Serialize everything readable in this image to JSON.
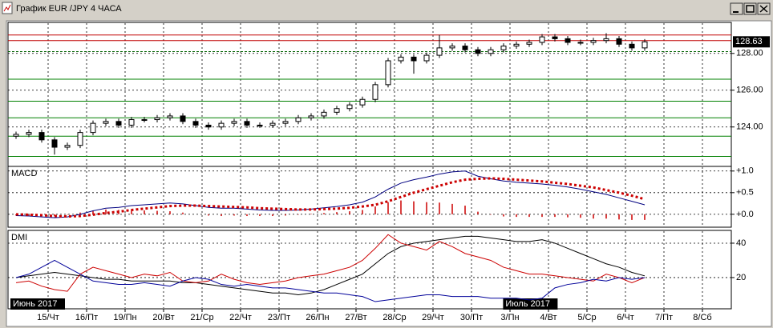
{
  "window": {
    "title": "График EUR /JPY  4 ЧАСА"
  },
  "chart_data": [
    {
      "type": "candlestick",
      "open": [
        123.5,
        123.6,
        123.7,
        123.3,
        122.9,
        123.0,
        123.7,
        124.2,
        124.3,
        124.1,
        124.4,
        124.4,
        124.5,
        124.6,
        124.3,
        124.1,
        124.0,
        124.2,
        124.3,
        124.1,
        124.1,
        124.2,
        124.3,
        124.5,
        124.6,
        124.8,
        125.0,
        125.2,
        125.5,
        126.3,
        127.6,
        127.8,
        127.6,
        127.9,
        128.3,
        128.4,
        128.2,
        128.0,
        128.2,
        128.4,
        128.5,
        128.6,
        128.9,
        128.8,
        128.6,
        128.6,
        128.7,
        128.8,
        128.5,
        128.3
      ],
      "high": [
        123.75,
        123.85,
        123.85,
        123.45,
        123.15,
        123.85,
        124.35,
        124.45,
        124.45,
        124.55,
        124.55,
        124.65,
        124.75,
        124.75,
        124.45,
        124.25,
        124.35,
        124.45,
        124.45,
        124.25,
        124.35,
        124.45,
        124.65,
        124.75,
        124.95,
        125.15,
        125.35,
        125.65,
        126.45,
        127.75,
        127.95,
        127.95,
        128.05,
        129.0,
        128.55,
        128.55,
        128.35,
        128.35,
        128.55,
        128.65,
        128.75,
        129.05,
        129.05,
        128.95,
        128.75,
        128.85,
        129.1,
        128.95,
        128.65,
        128.78
      ],
      "low": [
        123.35,
        123.45,
        123.15,
        122.5,
        122.75,
        122.85,
        123.55,
        124.05,
        123.95,
        123.95,
        124.25,
        124.25,
        124.35,
        124.15,
        123.95,
        123.85,
        123.85,
        124.05,
        123.95,
        123.95,
        123.95,
        124.05,
        124.15,
        124.35,
        124.45,
        124.65,
        124.85,
        125.05,
        125.35,
        126.15,
        127.45,
        126.9,
        127.45,
        127.75,
        128.15,
        128.05,
        127.85,
        127.85,
        128.05,
        128.25,
        128.35,
        128.45,
        128.65,
        128.45,
        128.45,
        128.45,
        128.55,
        128.35,
        128.15,
        128.15
      ],
      "close": [
        123.6,
        123.7,
        123.3,
        122.9,
        123.0,
        123.7,
        124.2,
        124.3,
        124.1,
        124.4,
        124.4,
        124.5,
        124.6,
        124.3,
        124.1,
        124.0,
        124.2,
        124.3,
        124.1,
        124.1,
        124.2,
        124.3,
        124.5,
        124.6,
        124.8,
        125.0,
        125.2,
        125.5,
        126.3,
        127.6,
        127.8,
        127.6,
        127.9,
        128.3,
        128.4,
        128.2,
        128.0,
        128.2,
        128.4,
        128.5,
        128.6,
        128.9,
        128.8,
        128.6,
        128.6,
        128.7,
        128.8,
        128.5,
        128.3,
        128.63
      ],
      "up_color": "#ffffff",
      "down_color": "#000000",
      "xlim": [
        0,
        56.25
      ],
      "xticks": [
        {
          "value": 3,
          "label": "15/Чт"
        },
        {
          "value": 6,
          "label": "16/Пт"
        },
        {
          "value": 9,
          "label": "19/Пн"
        },
        {
          "value": 12,
          "label": "20/Вт"
        },
        {
          "value": 15,
          "label": "21/Ср"
        },
        {
          "value": 18,
          "label": "22/Чт"
        },
        {
          "value": 21,
          "label": "23/Пт"
        },
        {
          "value": 24,
          "label": "26/Пн"
        },
        {
          "value": 27,
          "label": "27/Вт"
        },
        {
          "value": 30,
          "label": "28/Ср"
        },
        {
          "value": 33,
          "label": "29/Чт"
        },
        {
          "value": 36,
          "label": "30/Пт"
        },
        {
          "value": 39,
          "label": "3/Пн"
        },
        {
          "value": 42,
          "label": "4/Вт"
        },
        {
          "value": 45,
          "label": "5/Ср"
        },
        {
          "value": 48,
          "label": "6/Чт"
        },
        {
          "value": 51,
          "label": "7/Пт"
        },
        {
          "value": 54,
          "label": "8/Сб"
        }
      ],
      "ylim": [
        121.9,
        129.6
      ],
      "yticks": [
        {
          "value": 124,
          "label": "124.00"
        },
        {
          "value": 126,
          "label": "126.00"
        },
        {
          "value": 128,
          "label": "128.00"
        }
      ],
      "grid": true,
      "levels": [
        {
          "value": 129.0,
          "color": "#c00000"
        },
        {
          "value": 128.7,
          "color": "#c00000"
        },
        {
          "value": 128.1,
          "color": "#006400",
          "dashed": true
        },
        {
          "value": 126.6,
          "color": "#008000"
        },
        {
          "value": 125.4,
          "color": "#008000"
        },
        {
          "value": 124.5,
          "color": "#008000"
        },
        {
          "value": 123.5,
          "color": "#008000"
        },
        {
          "value": 122.4,
          "color": "#008000"
        }
      ],
      "last_price": 128.63,
      "months": [
        {
          "label": "Июнь 2017",
          "x": 0
        },
        {
          "label": "Июль 2017",
          "x": 38.4
        }
      ]
    },
    {
      "type": "macd",
      "label": "MACD",
      "series": [
        {
          "color": "#000080",
          "style": "solid",
          "values": [
            -0.03,
            -0.04,
            -0.06,
            -0.08,
            -0.06,
            0.0,
            0.08,
            0.14,
            0.16,
            0.2,
            0.22,
            0.24,
            0.26,
            0.24,
            0.2,
            0.16,
            0.14,
            0.14,
            0.12,
            0.1,
            0.09,
            0.09,
            0.1,
            0.12,
            0.15,
            0.18,
            0.22,
            0.28,
            0.4,
            0.58,
            0.72,
            0.8,
            0.86,
            0.93,
            0.98,
            1.0,
            0.88,
            0.82,
            0.77,
            0.74,
            0.72,
            0.7,
            0.67,
            0.63,
            0.58,
            0.52,
            0.46,
            0.38,
            0.3,
            0.22
          ]
        },
        {
          "color": "#cc0000",
          "style": "dotted",
          "values": [
            0.0,
            -0.01,
            -0.02,
            -0.04,
            -0.05,
            -0.04,
            -0.01,
            0.03,
            0.06,
            0.1,
            0.13,
            0.16,
            0.19,
            0.2,
            0.2,
            0.19,
            0.18,
            0.17,
            0.16,
            0.14,
            0.13,
            0.12,
            0.11,
            0.11,
            0.12,
            0.13,
            0.15,
            0.18,
            0.22,
            0.3,
            0.4,
            0.5,
            0.58,
            0.66,
            0.74,
            0.8,
            0.82,
            0.83,
            0.82,
            0.8,
            0.78,
            0.76,
            0.73,
            0.7,
            0.66,
            0.62,
            0.56,
            0.5,
            0.43,
            0.35
          ]
        }
      ],
      "histogram": {
        "color": "#cc0000",
        "values": [
          -0.03,
          -0.03,
          -0.04,
          -0.04,
          -0.01,
          0.04,
          0.09,
          0.11,
          0.1,
          0.1,
          0.09,
          0.08,
          0.07,
          0.04,
          0.0,
          -0.03,
          -0.04,
          -0.03,
          -0.04,
          -0.04,
          -0.04,
          -0.03,
          -0.01,
          0.01,
          0.03,
          0.05,
          0.07,
          0.1,
          0.18,
          0.28,
          0.32,
          0.3,
          0.28,
          0.27,
          0.24,
          0.2,
          0.06,
          -0.01,
          -0.05,
          -0.06,
          -0.06,
          -0.06,
          -0.06,
          -0.07,
          -0.08,
          -0.1,
          -0.1,
          -0.12,
          -0.13,
          -0.13
        ]
      },
      "ylim": [
        -0.28,
        1.07
      ],
      "yticks": [
        {
          "value": 0,
          "label": "+0.0"
        },
        {
          "value": 0.5,
          "label": "+0.5"
        },
        {
          "value": 1,
          "label": "+1.0"
        }
      ]
    },
    {
      "type": "line",
      "label": "DMI",
      "series": [
        {
          "color": "#000000",
          "values": [
            20,
            21,
            22,
            23,
            22,
            21,
            20,
            19,
            19,
            18,
            18,
            18,
            18,
            17,
            17,
            16,
            15,
            14,
            13,
            12,
            11,
            11,
            10,
            11,
            13,
            16,
            19,
            22,
            28,
            34,
            38,
            40,
            41,
            42,
            43,
            44,
            44,
            43,
            42,
            41,
            41,
            42,
            40,
            37,
            34,
            31,
            28,
            26,
            23,
            21
          ]
        },
        {
          "color": "#cc0000",
          "values": [
            17,
            18,
            15,
            13,
            12,
            22,
            26,
            24,
            22,
            20,
            22,
            21,
            23,
            18,
            17,
            18,
            22,
            19,
            17,
            16,
            17,
            18,
            20,
            21,
            22,
            24,
            26,
            30,
            37,
            45,
            40,
            38,
            36,
            41,
            38,
            34,
            32,
            30,
            26,
            24,
            22,
            22,
            21,
            20,
            19,
            18,
            22,
            20,
            17,
            20
          ]
        },
        {
          "color": "#000099",
          "values": [
            20,
            22,
            26,
            30,
            26,
            22,
            18,
            17,
            16,
            16,
            17,
            16,
            15,
            18,
            20,
            19,
            16,
            15,
            16,
            15,
            14,
            14,
            13,
            12,
            11,
            11,
            10,
            9,
            6,
            7,
            8,
            9,
            10,
            10,
            9,
            9,
            9,
            8,
            8,
            8,
            7,
            8,
            14,
            16,
            17,
            19,
            18,
            20,
            19,
            20
          ]
        }
      ],
      "ylim": [
        2.3,
        46.5
      ],
      "yticks": [
        20,
        40
      ]
    }
  ]
}
